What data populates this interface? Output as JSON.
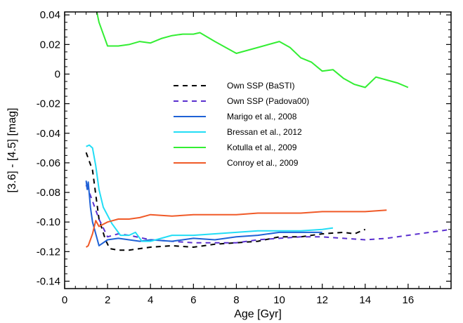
{
  "chart_data": {
    "type": "line",
    "title": "",
    "xlabel": "Age [Gyr]",
    "ylabel": "[3.6] - [4.5] [mag]",
    "xlim": [
      0,
      18
    ],
    "ylim": [
      -0.145,
      0.042
    ],
    "xticks": [
      0,
      2,
      4,
      6,
      8,
      10,
      12,
      14,
      16
    ],
    "xtick_labels": [
      "0",
      "2",
      "4",
      "6",
      "8",
      "10",
      "12",
      "14",
      "16"
    ],
    "yticks": [
      0.04,
      0.02,
      0,
      -0.02,
      -0.04,
      -0.06,
      -0.08,
      -0.1,
      -0.12,
      -0.14
    ],
    "ytick_labels": [
      "0.04",
      "0.02",
      "0",
      "-0.02",
      "-0.04",
      "-0.06",
      "-0.08",
      "-0.10",
      "-0.12",
      "-0.14"
    ],
    "grid": false,
    "legend_position": "center",
    "series": [
      {
        "name": "Own SSP (BaSTI)",
        "color": "#000000",
        "dash": true,
        "x": [
          1.0,
          1.3,
          1.6,
          1.9,
          2.1,
          2.5,
          3.0,
          3.5,
          4.0,
          5.0,
          6.0,
          7.0,
          8.0,
          9.0,
          10.0,
          11.0,
          12.0,
          13.0,
          13.5,
          14.0
        ],
        "y": [
          -0.053,
          -0.065,
          -0.098,
          -0.112,
          -0.118,
          -0.119,
          -0.119,
          -0.118,
          -0.117,
          -0.116,
          -0.117,
          -0.115,
          -0.114,
          -0.113,
          -0.11,
          -0.11,
          -0.108,
          -0.107,
          -0.108,
          -0.105
        ]
      },
      {
        "name": "Own SSP (Padova00)",
        "color": "#5a2fcf",
        "dash": true,
        "x": [
          1.0,
          1.2,
          1.6,
          2.0,
          2.5,
          3.0,
          4.0,
          5.0,
          6.0,
          7.0,
          8.0,
          9.0,
          10.0,
          11.0,
          12.0,
          13.0,
          14.0,
          15.0,
          16.0,
          17.0,
          18.0
        ],
        "y": [
          -0.075,
          -0.082,
          -0.098,
          -0.11,
          -0.108,
          -0.109,
          -0.112,
          -0.113,
          -0.114,
          -0.114,
          -0.114,
          -0.112,
          -0.111,
          -0.11,
          -0.11,
          -0.111,
          -0.112,
          -0.111,
          -0.109,
          -0.107,
          -0.105
        ]
      },
      {
        "name": "Marigo et al., 2008",
        "color": "#1f62d6",
        "dash": false,
        "x": [
          1.0,
          1.05,
          1.1,
          1.2,
          1.3,
          1.6,
          2.0,
          2.5,
          3.0,
          3.5,
          4.0,
          5.0,
          6.0,
          7.0,
          8.0,
          9.0,
          10.0,
          11.0,
          12.0
        ],
        "y": [
          -0.072,
          -0.078,
          -0.073,
          -0.09,
          -0.1,
          -0.116,
          -0.112,
          -0.111,
          -0.112,
          -0.113,
          -0.112,
          -0.113,
          -0.111,
          -0.112,
          -0.11,
          -0.109,
          -0.107,
          -0.107,
          -0.107
        ]
      },
      {
        "name": "Bressan et al., 2012",
        "color": "#22ddf5",
        "dash": false,
        "x": [
          1.0,
          1.15,
          1.3,
          1.45,
          1.6,
          1.8,
          2.2,
          2.6,
          3.0,
          3.3,
          3.6,
          4.0,
          4.5,
          5.0,
          6.0,
          7.0,
          8.0,
          9.0,
          10.0,
          11.0,
          12.0,
          12.5
        ],
        "y": [
          -0.049,
          -0.048,
          -0.05,
          -0.062,
          -0.078,
          -0.09,
          -0.101,
          -0.109,
          -0.109,
          -0.107,
          -0.113,
          -0.113,
          -0.111,
          -0.109,
          -0.109,
          -0.108,
          -0.107,
          -0.106,
          -0.106,
          -0.106,
          -0.105,
          -0.104
        ]
      },
      {
        "name": "Kotulla et al., 2009",
        "color": "#33ee33",
        "dash": false,
        "x": [
          1.5,
          1.6,
          2.0,
          2.5,
          3.0,
          3.5,
          4.0,
          4.5,
          5.0,
          5.5,
          6.0,
          6.3,
          7.0,
          8.0,
          9.0,
          10.0,
          10.5,
          11.0,
          11.5,
          12.0,
          12.5,
          13.0,
          13.5,
          14.0,
          14.5,
          15.0,
          15.5,
          16.0
        ],
        "y": [
          0.042,
          0.035,
          0.019,
          0.019,
          0.02,
          0.022,
          0.021,
          0.024,
          0.026,
          0.027,
          0.027,
          0.028,
          0.022,
          0.014,
          0.018,
          0.022,
          0.018,
          0.011,
          0.008,
          0.002,
          0.003,
          -0.003,
          -0.007,
          -0.009,
          -0.002,
          -0.004,
          -0.006,
          -0.009
        ]
      },
      {
        "name": "Conroy et al., 2009",
        "color": "#f05a28",
        "dash": false,
        "x": [
          1.0,
          1.1,
          1.3,
          1.45,
          1.6,
          2.0,
          2.5,
          3.0,
          3.5,
          4.0,
          5.0,
          6.0,
          7.0,
          8.0,
          9.0,
          10.0,
          11.0,
          12.0,
          13.0,
          14.0,
          15.0
        ],
        "y": [
          -0.117,
          -0.116,
          -0.108,
          -0.099,
          -0.103,
          -0.1,
          -0.098,
          -0.098,
          -0.097,
          -0.095,
          -0.096,
          -0.095,
          -0.095,
          -0.095,
          -0.094,
          -0.094,
          -0.094,
          -0.093,
          -0.093,
          -0.093,
          -0.092
        ]
      }
    ]
  }
}
